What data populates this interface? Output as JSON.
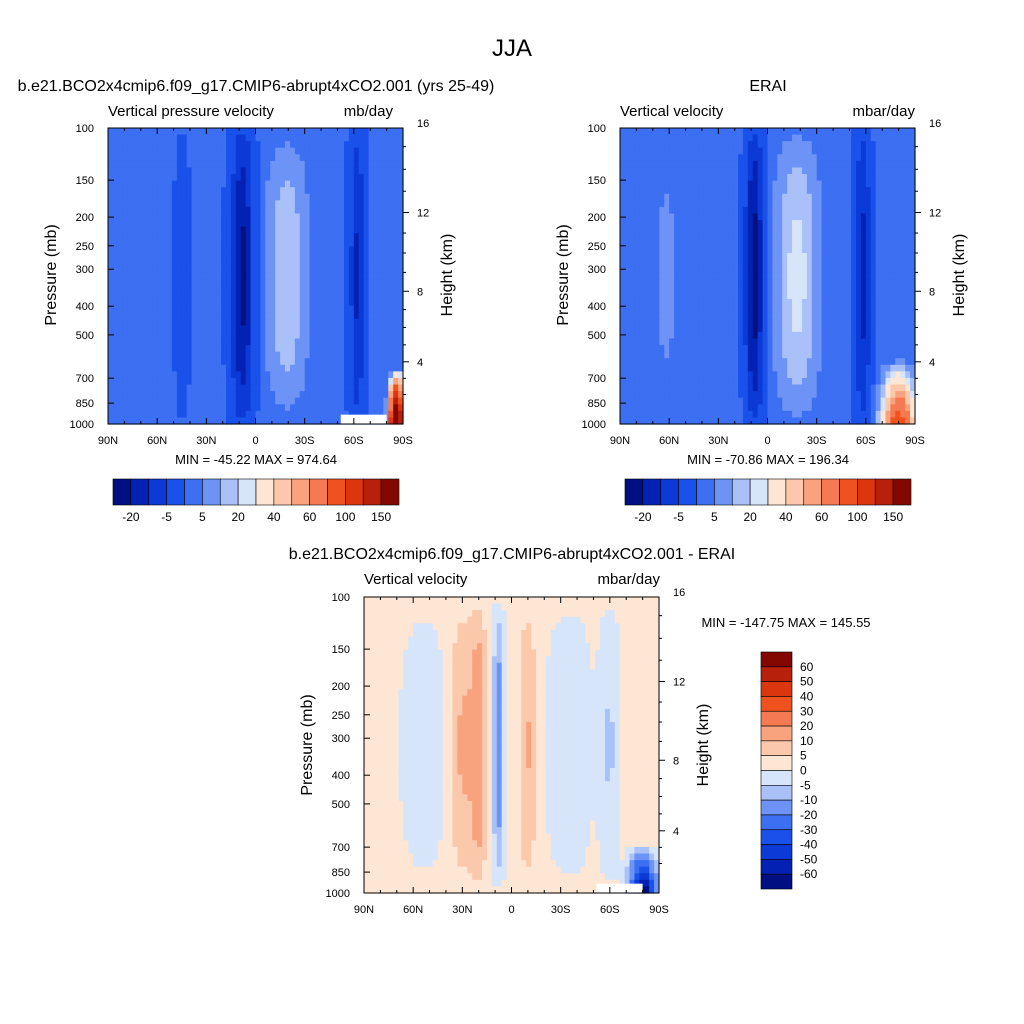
{
  "figure_title": "JJA",
  "colors": {
    "panel_palette": [
      "#000f82",
      "#0322b4",
      "#0b3ad6",
      "#1a51ea",
      "#3c6ff2",
      "#6d93f6",
      "#a9c1f8",
      "#d7e5fb",
      "#fde6d4",
      "#fbc8ac",
      "#f8a27e",
      "#f57a52",
      "#f0521f",
      "#db360e",
      "#b7200a",
      "#830803"
    ],
    "diff_palette": [
      "#000f82",
      "#0322b4",
      "#0b3ad6",
      "#1a51ea",
      "#3c6ff2",
      "#6d93f6",
      "#a9c1f8",
      "#d7e5fb",
      "#fde6d4",
      "#fbc8ac",
      "#f8a27e",
      "#f57a52",
      "#f0521f",
      "#db360e",
      "#b7200a",
      "#830803"
    ],
    "missing": "#ffffff"
  },
  "chart_data": [
    {
      "type": "heatmap",
      "title": "b.e21.BCO2x4cmip6.f09_g17.CMIP6-abrupt4xCO2.001 (yrs 25-49)",
      "left_string": "Vertical pressure velocity",
      "right_string": "mb/day",
      "xlabel": "",
      "ylabel": "Pressure (mb)",
      "y2label": "Height (km)",
      "x_ticks": [
        "90N",
        "60N",
        "30N",
        "0",
        "30S",
        "60S",
        "90S"
      ],
      "y_ticks": [
        "100",
        "150",
        "200",
        "250",
        "300",
        "400",
        "500",
        "700",
        "850",
        "1000"
      ],
      "y2_ticks": [
        "16",
        "12",
        "8",
        "4"
      ],
      "xlim": [
        90,
        -90
      ],
      "ylim": [
        1000,
        100
      ],
      "log_y": true,
      "stats": "MIN = -45.22  MAX = 974.64",
      "colorbar_orientation": "horizontal",
      "colorbar_labels": [
        "-20",
        "-5",
        "5",
        "20",
        "40",
        "60",
        "100",
        "150"
      ]
    },
    {
      "type": "heatmap",
      "title": "ERAI",
      "left_string": "Vertical velocity",
      "right_string": "mbar/day",
      "xlabel": "",
      "ylabel": "Pressure (mb)",
      "y2label": "Height (km)",
      "x_ticks": [
        "90N",
        "60N",
        "30N",
        "0",
        "30S",
        "60S",
        "90S"
      ],
      "y_ticks": [
        "100",
        "150",
        "200",
        "250",
        "300",
        "400",
        "500",
        "700",
        "850",
        "1000"
      ],
      "y2_ticks": [
        "16",
        "12",
        "8",
        "4"
      ],
      "xlim": [
        90,
        -90
      ],
      "ylim": [
        1000,
        100
      ],
      "log_y": true,
      "stats": "MIN = -70.86  MAX = 196.34",
      "colorbar_orientation": "horizontal",
      "colorbar_labels": [
        "-20",
        "-5",
        "5",
        "20",
        "40",
        "60",
        "100",
        "150"
      ]
    },
    {
      "type": "heatmap",
      "title": "b.e21.BCO2x4cmip6.f09_g17.CMIP6-abrupt4xCO2.001 - ERAI",
      "left_string": "Vertical velocity",
      "right_string": "mbar/day",
      "xlabel": "",
      "ylabel": "Pressure (mb)",
      "y2label": "Height (km)",
      "x_ticks": [
        "90N",
        "60N",
        "30N",
        "0",
        "30S",
        "60S",
        "90S"
      ],
      "y_ticks": [
        "100",
        "150",
        "200",
        "250",
        "300",
        "400",
        "500",
        "700",
        "850",
        "1000"
      ],
      "y2_ticks": [
        "16",
        "12",
        "8",
        "4"
      ],
      "xlim": [
        90,
        -90
      ],
      "ylim": [
        1000,
        100
      ],
      "log_y": true,
      "stats": "MIN = -147.75  MAX = 145.55",
      "colorbar_orientation": "vertical",
      "colorbar_labels": [
        "60",
        "50",
        "40",
        "30",
        "20",
        "10",
        "5",
        "0",
        "-5",
        "-10",
        "-20",
        "-30",
        "-40",
        "-50",
        "-60"
      ]
    }
  ]
}
